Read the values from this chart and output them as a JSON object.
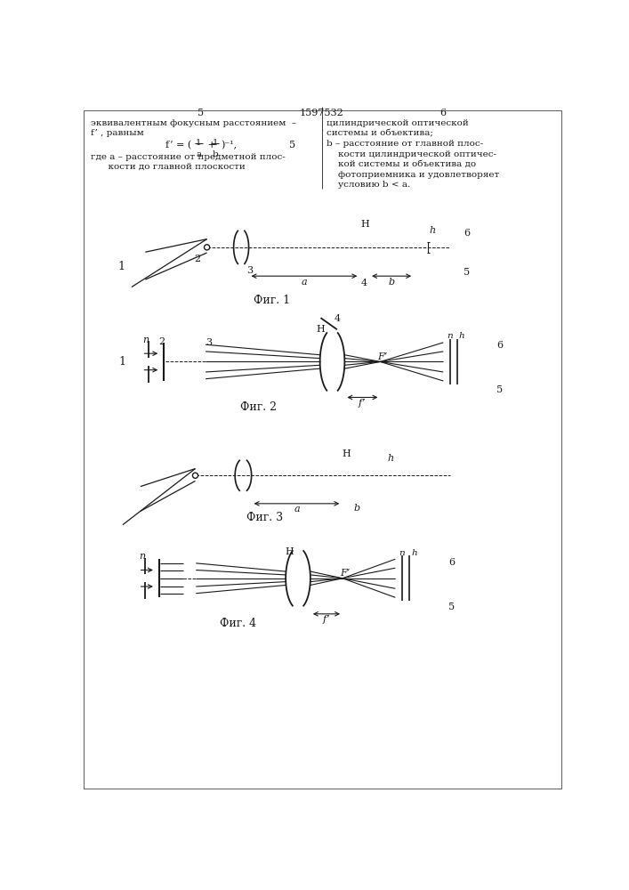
{
  "page_width": 7.07,
  "page_height": 10.0,
  "bg_color": "#ffffff",
  "lc": "#1a1a1a",
  "fig1_caption": "Фиг. 1",
  "fig2_caption": "Фиг. 2",
  "fig3_caption": "Фиг. 3",
  "fig4_caption": "Фиг. 4",
  "header_left_line1": "эквивалентным фокусным расстоянием  –",
  "header_left_line2": "f’ , равным",
  "header_left_line3": "где a – расстояние от предметной плос-",
  "header_left_line4": "      кости до главной плоскости",
  "header_right_line1": "цилиндрической оптической",
  "header_right_line2": "системы и объектива;",
  "header_right_line3": "b – расстояние от главной плос-",
  "header_right_line4": "    кости цилиндрической оптичес-",
  "header_right_line5": "    кой системы и объектива до",
  "header_right_line6": "    фотоприемника и удовлетворяет",
  "header_right_line7": "    условию b < a."
}
